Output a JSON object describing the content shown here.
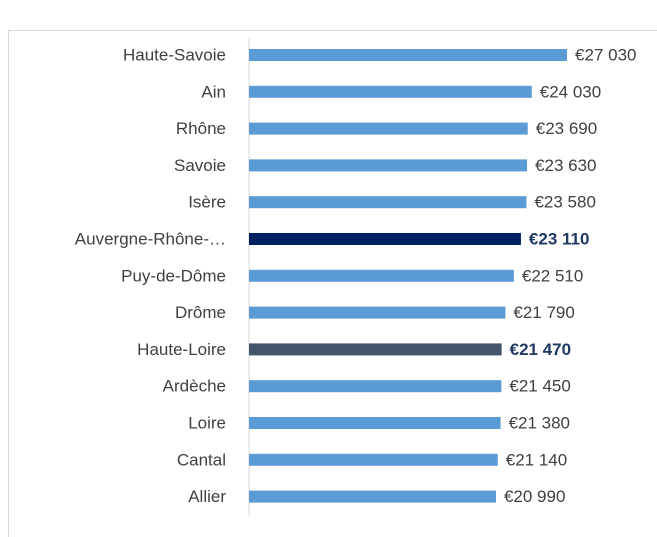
{
  "chart_data": {
    "type": "bar",
    "orientation": "horizontal",
    "categories": [
      "Haute-Savoie",
      "Ain",
      "Rhône",
      "Savoie",
      "Isère",
      "Auvergne-Rhône-…",
      "Puy-de-Dôme",
      "Drôme",
      "Haute-Loire",
      "Ardèche",
      "Loire",
      "Cantal",
      "Allier"
    ],
    "values": [
      27030,
      24030,
      23690,
      23630,
      23580,
      23110,
      22510,
      21790,
      21470,
      21450,
      21380,
      21140,
      20990
    ],
    "value_labels": [
      "€27 030",
      "€24 030",
      "€23 690",
      "€23 630",
      "€23 580",
      "€23 110",
      "€22 510",
      "€21 790",
      "€21 470",
      "€21 450",
      "€21 380",
      "€21 140",
      "€20 990"
    ],
    "color": "#5b9bd5",
    "colors": [
      "#5b9bd5",
      "#5b9bd5",
      "#5b9bd5",
      "#5b9bd5",
      "#5b9bd5",
      "#002060",
      "#5b9bd5",
      "#5b9bd5",
      "#44546a",
      "#5b9bd5",
      "#5b9bd5",
      "#5b9bd5",
      "#5b9bd5"
    ],
    "highlight_label_color": "#1f3864",
    "xlim": [
      0,
      30000
    ]
  }
}
